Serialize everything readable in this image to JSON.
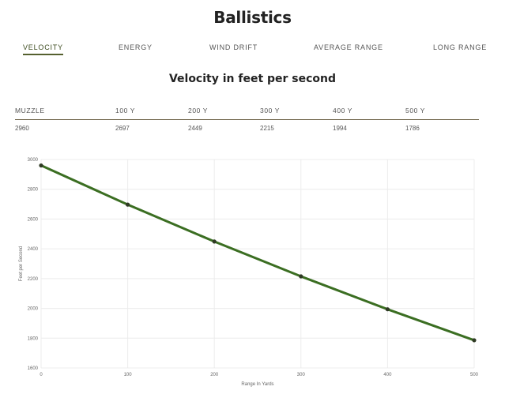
{
  "page": {
    "title": "Ballistics",
    "tabs": [
      {
        "label": "VELOCITY",
        "active": true
      },
      {
        "label": "ENERGY",
        "active": false
      },
      {
        "label": "WIND DRIFT",
        "active": false
      },
      {
        "label": "AVERAGE RANGE",
        "active": false
      },
      {
        "label": "LONG RANGE",
        "active": false
      }
    ],
    "subtitle": "Velocity in feet per second"
  },
  "table": {
    "headers": [
      "MUZZLE",
      "100 Y",
      "200 Y",
      "300 Y",
      "400 Y",
      "500 Y"
    ],
    "values": [
      "2960",
      "2697",
      "2449",
      "2215",
      "1994",
      "1786"
    ]
  },
  "colors": {
    "line": "#3b6e22",
    "point": "#2f3a24",
    "grid": "#ececec",
    "tab_underline": "#55602f",
    "table_rule": "#6b6145"
  },
  "chart_data": {
    "type": "line",
    "xlabel": "Range In Yards",
    "ylabel": "Feet per Second",
    "xlim": [
      0,
      500
    ],
    "ylim": [
      1600,
      3000
    ],
    "xticks": [
      0,
      100,
      200,
      300,
      400,
      500
    ],
    "yticks": [
      1600,
      1800,
      2000,
      2200,
      2400,
      2600,
      2800,
      3000
    ],
    "grid": true,
    "series": [
      {
        "x": [
          0,
          100,
          200,
          300,
          400,
          500
        ],
        "y": [
          2960,
          2697,
          2449,
          2215,
          1994,
          1786
        ]
      }
    ]
  }
}
